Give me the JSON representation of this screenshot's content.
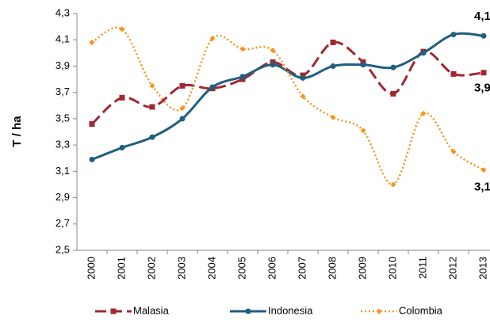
{
  "chart_data": {
    "type": "line",
    "y_label": "T / ha",
    "categories": [
      "2000",
      "2001",
      "2002",
      "2003",
      "2004",
      "2005",
      "2006",
      "2007",
      "2008",
      "2009",
      "2010",
      "2011",
      "2012",
      "2013"
    ],
    "series": [
      {
        "name": "Malasia",
        "color": "#a0282e",
        "values": [
          3.46,
          3.66,
          3.59,
          3.75,
          3.73,
          3.8,
          3.93,
          3.83,
          4.08,
          3.93,
          3.69,
          4.01,
          3.84,
          3.85
        ],
        "value_labels": [
          null,
          null,
          null,
          null,
          null,
          null,
          null,
          null,
          null,
          null,
          null,
          null,
          null,
          "3,9"
        ]
      },
      {
        "name": "Indonesia",
        "color": "#1f5f7f",
        "values": [
          3.19,
          3.28,
          3.36,
          3.5,
          3.74,
          3.82,
          3.91,
          3.81,
          3.9,
          3.91,
          3.89,
          4.0,
          4.14,
          4.13
        ],
        "value_labels": [
          null,
          null,
          null,
          null,
          null,
          null,
          null,
          null,
          null,
          null,
          null,
          null,
          null,
          "4,1"
        ]
      },
      {
        "name": "Colombia",
        "color": "#f7941d",
        "values": [
          4.08,
          4.18,
          3.75,
          3.58,
          4.11,
          4.03,
          4.02,
          3.67,
          3.51,
          3.41,
          3.0,
          3.54,
          3.25,
          3.11
        ],
        "value_labels": [
          null,
          null,
          null,
          null,
          null,
          null,
          null,
          null,
          null,
          null,
          null,
          null,
          null,
          "3,1"
        ]
      }
    ],
    "ylim": [
      2.5,
      4.3
    ],
    "yticks": [
      {
        "value": 2.5,
        "label": "2,5"
      },
      {
        "value": 2.7,
        "label": "2,7"
      },
      {
        "value": 2.9,
        "label": "2,9"
      },
      {
        "value": 3.1,
        "label": "3,1"
      },
      {
        "value": 3.3,
        "label": "3,3"
      },
      {
        "value": 3.5,
        "label": "3,5"
      },
      {
        "value": 3.7,
        "label": "3,7"
      },
      {
        "value": 3.9,
        "label": "3,9"
      },
      {
        "value": 4.1,
        "label": "4,1"
      },
      {
        "value": 4.3,
        "label": "4,3"
      }
    ],
    "legend": "bottom"
  }
}
